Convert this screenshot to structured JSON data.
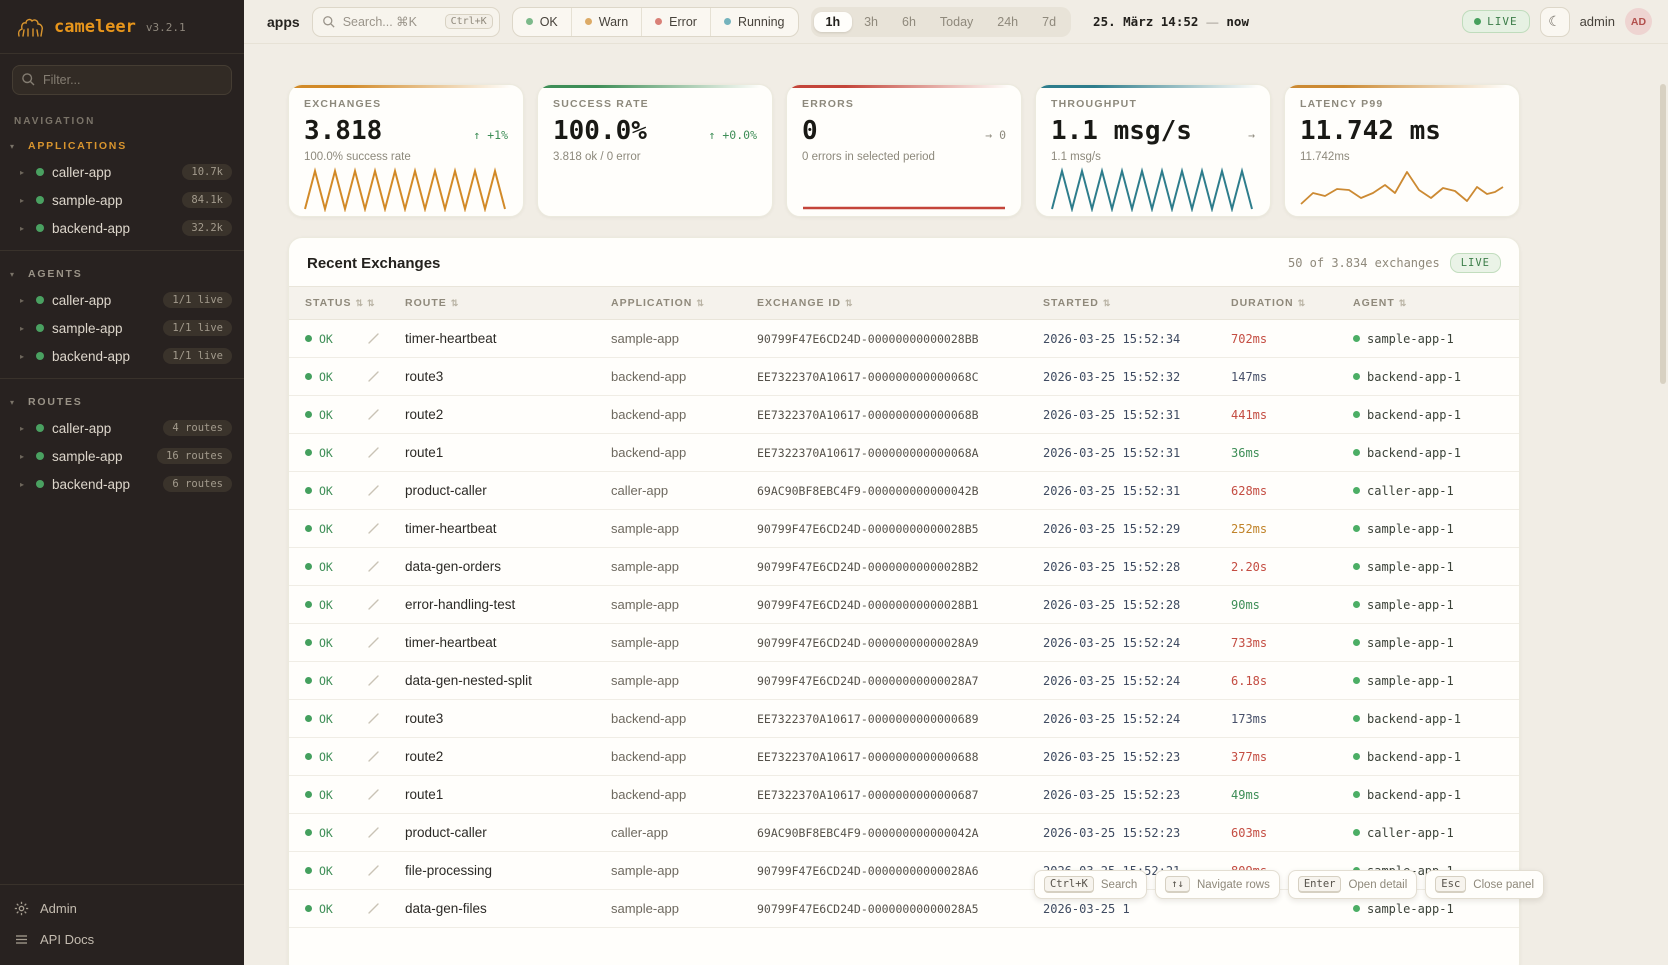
{
  "brand": {
    "name": "cameleer",
    "version": "v3.2.1"
  },
  "sidebar": {
    "filter_placeholder": "Filter...",
    "nav_label": "NAVIGATION",
    "sections": [
      {
        "label": "APPLICATIONS",
        "accent": true,
        "items": [
          {
            "name": "caller-app",
            "badge": "10.7k"
          },
          {
            "name": "sample-app",
            "badge": "84.1k"
          },
          {
            "name": "backend-app",
            "badge": "32.2k"
          }
        ]
      },
      {
        "label": "AGENTS",
        "accent": false,
        "items": [
          {
            "name": "caller-app",
            "badge": "1/1 live"
          },
          {
            "name": "sample-app",
            "badge": "1/1 live"
          },
          {
            "name": "backend-app",
            "badge": "1/1 live"
          }
        ]
      },
      {
        "label": "ROUTES",
        "accent": false,
        "items": [
          {
            "name": "caller-app",
            "badge": "4 routes"
          },
          {
            "name": "sample-app",
            "badge": "16 routes"
          },
          {
            "name": "backend-app",
            "badge": "6 routes"
          }
        ]
      }
    ],
    "footer": [
      {
        "icon": "gear-icon",
        "label": "Admin"
      },
      {
        "icon": "menu-icon",
        "label": "API Docs"
      }
    ]
  },
  "topbar": {
    "context_label": "apps",
    "search": {
      "placeholder": "Search... ⌘K",
      "kbd": "Ctrl+K"
    },
    "status_filters": [
      {
        "label": "OK",
        "color": "#7cb98a"
      },
      {
        "label": "Warn",
        "color": "#dcaa66"
      },
      {
        "label": "Error",
        "color": "#d98077"
      },
      {
        "label": "Running",
        "color": "#74b3bd"
      }
    ],
    "ranges": [
      {
        "label": "1h",
        "active": true
      },
      {
        "label": "3h",
        "active": false
      },
      {
        "label": "6h",
        "active": false
      },
      {
        "label": "Today",
        "active": false
      },
      {
        "label": "24h",
        "active": false
      },
      {
        "label": "7d",
        "active": false
      }
    ],
    "range_start": "25. März 14:52",
    "range_sep": "—",
    "range_end": "now",
    "live_label": "LIVE",
    "user": "admin",
    "avatar": "AD"
  },
  "cards": [
    {
      "title": "EXCHANGES",
      "value": "3.818",
      "delta": "↑ +1%",
      "delta_color": "green",
      "subtitle": "100.0% success rate",
      "accent": "#d28a28",
      "spark": "zigzag"
    },
    {
      "title": "SUCCESS RATE",
      "value": "100.0%",
      "delta": "↑ +0.0%",
      "delta_color": "green",
      "subtitle": "3.818 ok / 0 error",
      "accent": "#3e8e57",
      "spark": "none"
    },
    {
      "title": "ERRORS",
      "value": "0",
      "delta": "→ 0",
      "delta_color": "gray",
      "subtitle": "0 errors in selected period",
      "accent": "#c4453a",
      "spark": "flat"
    },
    {
      "title": "THROUGHPUT",
      "value": "1.1 msg/s",
      "delta": "→",
      "delta_color": "gray",
      "subtitle": "1.1 msg/s",
      "accent": "#2e7d8c",
      "spark": "zigzag"
    },
    {
      "title": "LATENCY P99",
      "value": "11.742 ms",
      "delta": "",
      "delta_color": "gray",
      "subtitle": "11.742ms",
      "accent": "#cc8a33",
      "spark": "wave"
    }
  ],
  "table": {
    "title": "Recent Exchanges",
    "meta": "50 of 3.834 exchanges",
    "live_label": "LIVE",
    "columns": [
      "STATUS",
      "",
      "ROUTE",
      "APPLICATION",
      "EXCHANGE ID",
      "STARTED",
      "DURATION",
      "AGENT"
    ],
    "rows": [
      {
        "status": "OK",
        "route": "timer-heartbeat",
        "application": "sample-app",
        "exchange_id": "90799F47E6CD24D-00000000000028BB",
        "started": "2026-03-25 15:52:34",
        "duration": "702ms",
        "duration_color": "#c44d42",
        "agent": "sample-app-1"
      },
      {
        "status": "OK",
        "route": "route3",
        "application": "backend-app",
        "exchange_id": "EE7322370A10617-000000000000068C",
        "started": "2026-03-25 15:52:32",
        "duration": "147ms",
        "duration_color": "#475069",
        "agent": "backend-app-1"
      },
      {
        "status": "OK",
        "route": "route2",
        "application": "backend-app",
        "exchange_id": "EE7322370A10617-000000000000068B",
        "started": "2026-03-25 15:52:31",
        "duration": "441ms",
        "duration_color": "#c44d42",
        "agent": "backend-app-1"
      },
      {
        "status": "OK",
        "route": "route1",
        "application": "backend-app",
        "exchange_id": "EE7322370A10617-000000000000068A",
        "started": "2026-03-25 15:52:31",
        "duration": "36ms",
        "duration_color": "#3e8e57",
        "agent": "backend-app-1"
      },
      {
        "status": "OK",
        "route": "product-caller",
        "application": "caller-app",
        "exchange_id": "69AC90BF8EBC4F9-000000000000042B",
        "started": "2026-03-25 15:52:31",
        "duration": "628ms",
        "duration_color": "#c44d42",
        "agent": "caller-app-1"
      },
      {
        "status": "OK",
        "route": "timer-heartbeat",
        "application": "sample-app",
        "exchange_id": "90799F47E6CD24D-00000000000028B5",
        "started": "2026-03-25 15:52:29",
        "duration": "252ms",
        "duration_color": "#c08329",
        "agent": "sample-app-1"
      },
      {
        "status": "OK",
        "route": "data-gen-orders",
        "application": "sample-app",
        "exchange_id": "90799F47E6CD24D-00000000000028B2",
        "started": "2026-03-25 15:52:28",
        "duration": "2.20s",
        "duration_color": "#c44d42",
        "agent": "sample-app-1"
      },
      {
        "status": "OK",
        "route": "error-handling-test",
        "application": "sample-app",
        "exchange_id": "90799F47E6CD24D-00000000000028B1",
        "started": "2026-03-25 15:52:28",
        "duration": "90ms",
        "duration_color": "#3e8e57",
        "agent": "sample-app-1"
      },
      {
        "status": "OK",
        "route": "timer-heartbeat",
        "application": "sample-app",
        "exchange_id": "90799F47E6CD24D-00000000000028A9",
        "started": "2026-03-25 15:52:24",
        "duration": "733ms",
        "duration_color": "#c44d42",
        "agent": "sample-app-1"
      },
      {
        "status": "OK",
        "route": "data-gen-nested-split",
        "application": "sample-app",
        "exchange_id": "90799F47E6CD24D-00000000000028A7",
        "started": "2026-03-25 15:52:24",
        "duration": "6.18s",
        "duration_color": "#c44d42",
        "agent": "sample-app-1"
      },
      {
        "status": "OK",
        "route": "route3",
        "application": "backend-app",
        "exchange_id": "EE7322370A10617-0000000000000689",
        "started": "2026-03-25 15:52:24",
        "duration": "173ms",
        "duration_color": "#475069",
        "agent": "backend-app-1"
      },
      {
        "status": "OK",
        "route": "route2",
        "application": "backend-app",
        "exchange_id": "EE7322370A10617-0000000000000688",
        "started": "2026-03-25 15:52:23",
        "duration": "377ms",
        "duration_color": "#c44d42",
        "agent": "backend-app-1"
      },
      {
        "status": "OK",
        "route": "route1",
        "application": "backend-app",
        "exchange_id": "EE7322370A10617-0000000000000687",
        "started": "2026-03-25 15:52:23",
        "duration": "49ms",
        "duration_color": "#3e8e57",
        "agent": "backend-app-1"
      },
      {
        "status": "OK",
        "route": "product-caller",
        "application": "caller-app",
        "exchange_id": "69AC90BF8EBC4F9-000000000000042A",
        "started": "2026-03-25 15:52:23",
        "duration": "603ms",
        "duration_color": "#c44d42",
        "agent": "caller-app-1"
      },
      {
        "status": "OK",
        "route": "file-processing",
        "application": "sample-app",
        "exchange_id": "90799F47E6CD24D-00000000000028A6",
        "started": "2026-03-25 15:52:21",
        "duration": "809ms",
        "duration_color": "#c44d42",
        "agent": "sample-app-1"
      },
      {
        "status": "OK",
        "route": "data-gen-files",
        "application": "sample-app",
        "exchange_id": "90799F47E6CD24D-00000000000028A5",
        "started": "2026-03-25 1",
        "duration": "",
        "duration_color": "#c44d42",
        "agent": "sample-app-1"
      }
    ]
  },
  "shortcuts": [
    {
      "kbd": "Ctrl+K",
      "label": "Search"
    },
    {
      "kbd": "↑↓",
      "label": "Navigate rows"
    },
    {
      "kbd": "Enter",
      "label": "Open detail"
    },
    {
      "kbd": "Esc",
      "label": "Close panel"
    }
  ]
}
